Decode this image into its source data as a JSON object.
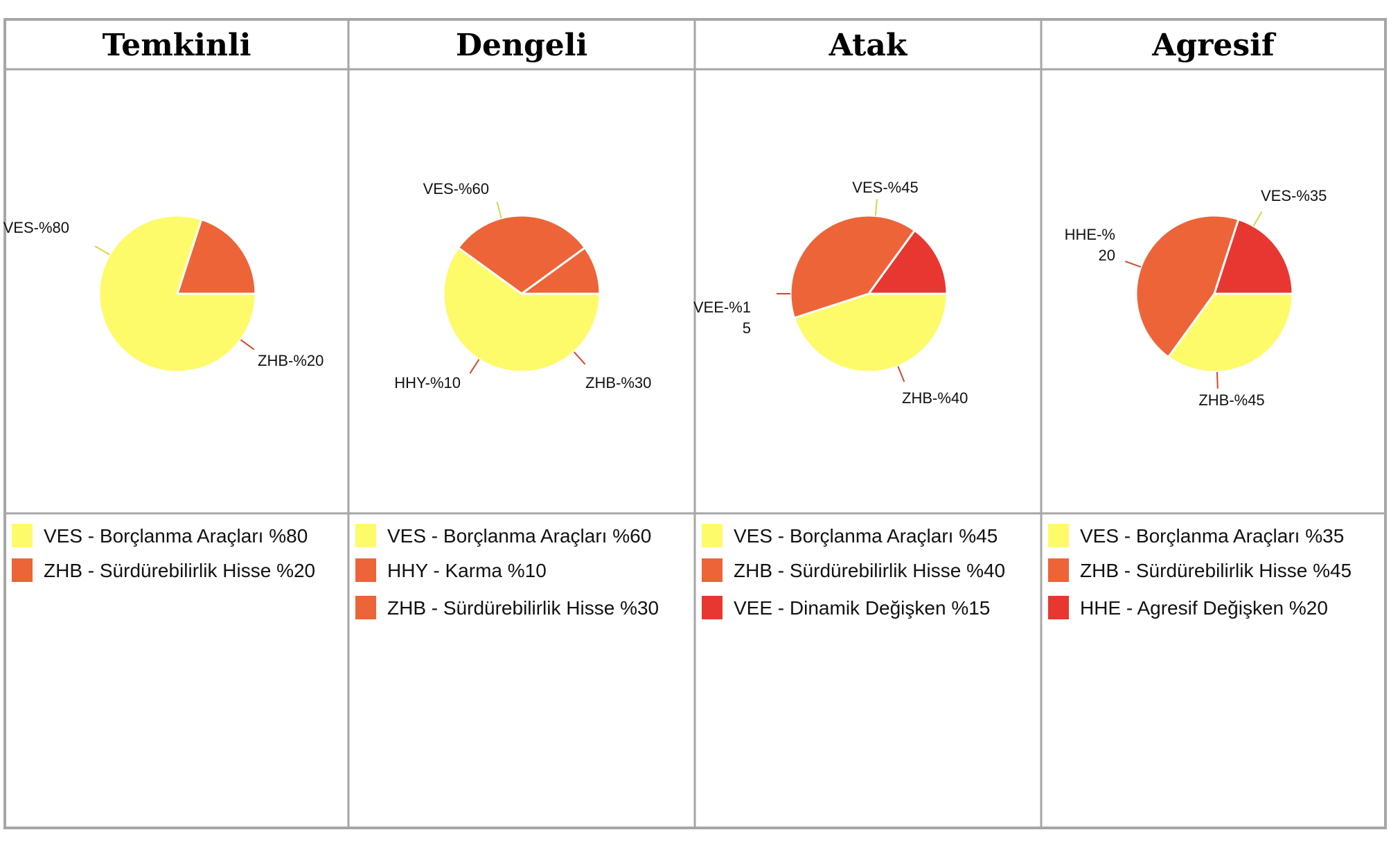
{
  "colors": {
    "border": "#a6a6a6",
    "yellow": "#fefb6a",
    "orange": "#ed6439",
    "red": "#e83730"
  },
  "chart_data": [
    {
      "type": "pie",
      "title": "Temkinli",
      "slices": [
        {
          "code": "VES",
          "value": 80,
          "label": "VES-%80",
          "label_lines": [
            "VES-%80"
          ],
          "legend": "VES - Borçlanma Araçları %80",
          "color": "#fefb6a"
        },
        {
          "code": "ZHB",
          "value": 20,
          "label": "ZHB-%20",
          "label_lines": [
            "ZHB-%20"
          ],
          "legend": "ZHB - Sürdürebilirlik Hisse %20",
          "color": "#ed6439"
        }
      ]
    },
    {
      "type": "pie",
      "title": "Dengeli",
      "slices": [
        {
          "code": "VES",
          "value": 60,
          "label": "VES-%60",
          "label_lines": [
            "VES-%60"
          ],
          "legend": "VES - Borçlanma Araçları %60",
          "color": "#fefb6a"
        },
        {
          "code": "HHY",
          "value": 10,
          "label": "HHY-%10",
          "label_lines": [
            "HHY-%10"
          ],
          "legend": "HHY - Karma %10",
          "color": "#ed6439"
        },
        {
          "code": "ZHB",
          "value": 30,
          "label": "ZHB-%30",
          "label_lines": [
            "ZHB-%30"
          ],
          "legend": "ZHB - Sürdürebilirlik Hisse %30",
          "color": "#ed6439"
        }
      ]
    },
    {
      "type": "pie",
      "title": "Atak",
      "slices": [
        {
          "code": "VES",
          "value": 45,
          "label": "VES-%45",
          "label_lines": [
            "VES-%45"
          ],
          "legend": "VES - Borçlanma Araçları %45",
          "color": "#fefb6a"
        },
        {
          "code": "VEE",
          "value": 15,
          "label": "VEE-%15",
          "label_lines": [
            "VEE-%1",
            "5"
          ],
          "legend": "VEE - Dinamik Değişken %15",
          "color": "#e83730"
        },
        {
          "code": "ZHB",
          "value": 40,
          "label": "ZHB-%40",
          "label_lines": [
            "ZHB-%40"
          ],
          "legend": "ZHB - Sürdürebilirlik Hisse %40",
          "color": "#ed6439"
        }
      ]
    },
    {
      "type": "pie",
      "title": "Agresif",
      "slices": [
        {
          "code": "VES",
          "value": 35,
          "label": "VES-%35",
          "label_lines": [
            "VES-%35"
          ],
          "legend": "VES - Borçlanma Araçları %35",
          "color": "#fefb6a"
        },
        {
          "code": "HHE",
          "value": 20,
          "label": "HHE-%20",
          "label_lines": [
            "HHE-%",
            "20"
          ],
          "legend": "HHE - Agresif Değişken %20",
          "color": "#e83730"
        },
        {
          "code": "ZHB",
          "value": 45,
          "label": "ZHB-%45",
          "label_lines": [
            "ZHB-%45"
          ],
          "legend": "ZHB - Sürdürebilirlik Hisse %45",
          "color": "#ed6439"
        }
      ]
    }
  ],
  "legend_order": [
    [
      "VES",
      "ZHB"
    ],
    [
      "VES",
      "HHY",
      "ZHB"
    ],
    [
      "VES",
      "ZHB",
      "VEE"
    ],
    [
      "VES",
      "ZHB",
      "HHE"
    ]
  ]
}
